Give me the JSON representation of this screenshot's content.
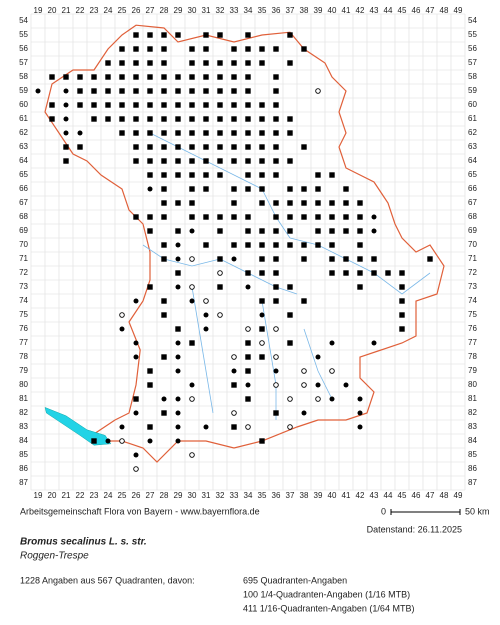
{
  "map": {
    "columns": [
      19,
      20,
      21,
      22,
      23,
      24,
      25,
      26,
      27,
      28,
      29,
      30,
      31,
      32,
      33,
      34,
      35,
      36,
      37,
      38,
      39,
      40,
      41,
      42,
      43,
      44,
      45,
      46,
      47,
      48,
      49
    ],
    "rows": [
      54,
      55,
      56,
      57,
      58,
      59,
      60,
      61,
      62,
      63,
      64,
      65,
      66,
      67,
      68,
      69,
      70,
      71,
      72,
      73,
      74,
      75,
      76,
      77,
      78,
      79,
      80,
      81,
      82,
      83,
      84,
      85,
      86,
      87
    ],
    "records": [
      {
        "row": 55,
        "q": [
          26,
          27,
          28,
          29,
          31,
          32,
          34,
          37
        ],
        "f": [],
        "o": []
      },
      {
        "row": 56,
        "q": [
          25,
          26,
          27,
          28,
          30,
          31,
          33,
          34,
          35,
          36,
          38
        ],
        "f": [],
        "o": []
      },
      {
        "row": 57,
        "q": [
          24,
          25,
          26,
          27,
          28,
          30,
          31,
          32,
          33,
          34,
          35,
          37
        ],
        "f": [],
        "o": []
      },
      {
        "row": 58,
        "q": [
          20,
          21,
          22,
          23,
          24,
          25,
          26,
          27,
          28,
          29,
          30,
          31,
          32,
          33,
          34,
          36
        ],
        "f": [],
        "o": []
      },
      {
        "row": 59,
        "q": [
          22,
          23,
          24,
          25,
          26,
          27,
          28,
          29,
          30,
          31,
          32,
          33,
          34,
          36
        ],
        "f": [
          19,
          21
        ],
        "o": [
          39
        ]
      },
      {
        "row": 60,
        "q": [
          20,
          22,
          23,
          24,
          25,
          26,
          27,
          28,
          29,
          30,
          31,
          32,
          33,
          34,
          35,
          36
        ],
        "f": [
          21
        ],
        "o": []
      },
      {
        "row": 61,
        "q": [
          20,
          23,
          24,
          25,
          26,
          27,
          28,
          29,
          30,
          31,
          32,
          33,
          34,
          35,
          36,
          37
        ],
        "f": [
          21
        ],
        "o": []
      },
      {
        "row": 62,
        "q": [
          25,
          26,
          27,
          28,
          29,
          30,
          31,
          32,
          33,
          34,
          35,
          36,
          37
        ],
        "f": [
          21,
          22
        ],
        "o": []
      },
      {
        "row": 63,
        "q": [
          21,
          22,
          26,
          27,
          28,
          29,
          30,
          31,
          32,
          33,
          34,
          35,
          36,
          38
        ],
        "f": [],
        "o": []
      },
      {
        "row": 64,
        "q": [
          21,
          26,
          27,
          28,
          29,
          30,
          31,
          32,
          33,
          34,
          35,
          36,
          37
        ],
        "f": [],
        "o": []
      },
      {
        "row": 65,
        "q": [
          27,
          28,
          29,
          30,
          31,
          32,
          34,
          35,
          36,
          39,
          40
        ],
        "f": [],
        "o": []
      },
      {
        "row": 66,
        "q": [
          28,
          30,
          31,
          33,
          34,
          35,
          37,
          38,
          39,
          41
        ],
        "f": [
          27
        ],
        "o": []
      },
      {
        "row": 67,
        "q": [
          28,
          29,
          30,
          33,
          35,
          36,
          37,
          38,
          39,
          40,
          41,
          42
        ],
        "f": [],
        "o": []
      },
      {
        "row": 68,
        "q": [
          26,
          27,
          28,
          30,
          31,
          32,
          33,
          34,
          36,
          37,
          38,
          39,
          40,
          41,
          42
        ],
        "f": [
          43
        ],
        "o": []
      },
      {
        "row": 69,
        "q": [
          27,
          29,
          32,
          34,
          35,
          36,
          37,
          39,
          40,
          41,
          42
        ],
        "f": [
          30,
          43
        ],
        "o": []
      },
      {
        "row": 70,
        "q": [
          28,
          31,
          33,
          34,
          35,
          36,
          37,
          38,
          39,
          40,
          42
        ],
        "f": [
          29
        ],
        "o": []
      },
      {
        "row": 71,
        "q": [
          28,
          32,
          35,
          36,
          38,
          40,
          41,
          42,
          43,
          47
        ],
        "f": [
          29,
          33
        ],
        "o": [
          30
        ]
      },
      {
        "row": 72,
        "q": [
          29,
          34,
          35,
          36,
          40,
          41,
          42,
          43,
          44,
          45
        ],
        "f": [],
        "o": [
          32
        ]
      },
      {
        "row": 73,
        "q": [
          27,
          32,
          36,
          37,
          42,
          45
        ],
        "f": [
          29,
          34
        ],
        "o": [
          30
        ]
      },
      {
        "row": 74,
        "q": [
          28,
          35,
          36,
          38,
          45
        ],
        "f": [
          26,
          30
        ],
        "o": [
          31
        ]
      },
      {
        "row": 75,
        "q": [
          28,
          37,
          45
        ],
        "f": [
          31,
          35
        ],
        "o": [
          25,
          32
        ]
      },
      {
        "row": 76,
        "q": [
          29,
          35,
          45
        ],
        "f": [
          25,
          31
        ],
        "o": [
          34,
          36
        ]
      },
      {
        "row": 77,
        "q": [
          30,
          34,
          37
        ],
        "f": [
          26,
          29,
          40,
          43
        ],
        "o": [
          35
        ]
      },
      {
        "row": 78,
        "q": [
          28,
          34,
          35
        ],
        "f": [
          26,
          29,
          39
        ],
        "o": [
          33,
          36
        ]
      },
      {
        "row": 79,
        "q": [
          27,
          34
        ],
        "f": [
          29,
          33,
          36
        ],
        "o": [
          38,
          40
        ]
      },
      {
        "row": 80,
        "q": [
          27,
          33
        ],
        "f": [
          30,
          34,
          39,
          41
        ],
        "o": [
          36,
          38
        ]
      },
      {
        "row": 81,
        "q": [
          26,
          34
        ],
        "f": [
          28,
          29,
          40,
          42
        ],
        "o": [
          30,
          37,
          39
        ]
      },
      {
        "row": 82,
        "q": [
          28,
          36
        ],
        "f": [
          26,
          29,
          38,
          42
        ],
        "o": [
          33
        ]
      },
      {
        "row": 83,
        "q": [
          27,
          33
        ],
        "f": [
          25,
          29,
          31,
          42
        ],
        "o": [
          34,
          37
        ]
      },
      {
        "row": 84,
        "q": [
          23,
          35
        ],
        "f": [
          24,
          27,
          29
        ],
        "o": [
          25
        ]
      },
      {
        "row": 85,
        "q": [],
        "f": [
          26
        ],
        "o": [
          30
        ]
      },
      {
        "row": 86,
        "q": [],
        "f": [],
        "o": [
          26
        ]
      }
    ]
  },
  "footer": {
    "credit": "Arbeitsgemeinschaft Flora von Bayern - www.bayernflora.de",
    "scale_start": "0",
    "scale_end": "50 km",
    "date": "Datenstand: 26.11.2025",
    "species": "Bromus secalinus L. s. str.",
    "common_name": "Roggen-Trespe",
    "summary": "1228 Angaben aus 567 Quadranten, davon:",
    "counts": [
      "695 Quadranten-Angaben",
      "100 1/4-Quadranten-Angaben (1/16 MTB)",
      "411 1/16-Quadranten-Angaben (1/64 MTB)"
    ]
  }
}
